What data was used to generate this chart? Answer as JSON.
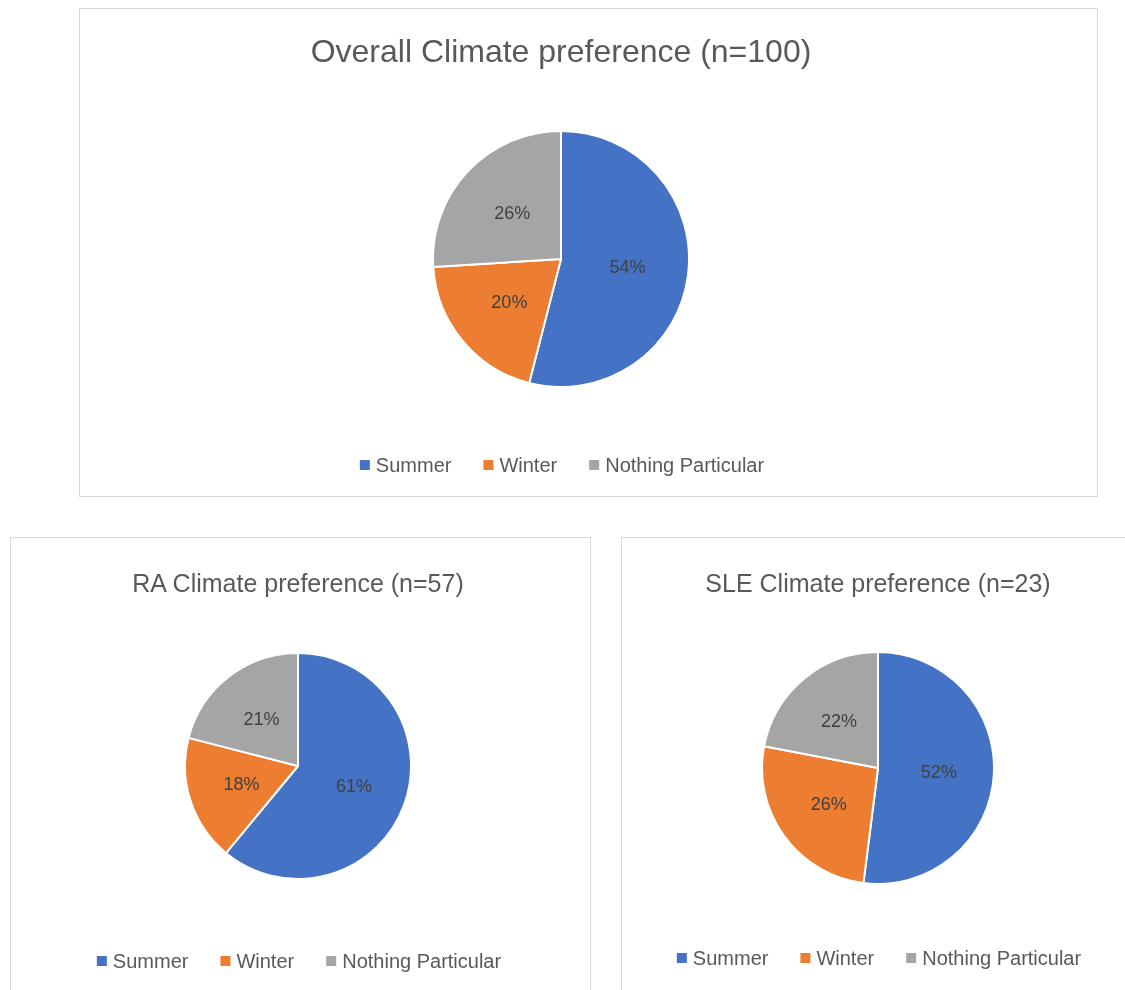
{
  "chart_data": [
    {
      "type": "pie",
      "title": "Overall Climate preference (n=100)",
      "categories": [
        "Summer",
        "Winter",
        "Nothing Particular"
      ],
      "values": [
        54,
        20,
        26
      ],
      "colors": [
        "#4472c4",
        "#ed7d31",
        "#a5a5a5"
      ],
      "value_labels": [
        "54%",
        "20%",
        "26%"
      ],
      "legend": "bottom"
    },
    {
      "type": "pie",
      "title": "RA Climate preference (n=57)",
      "categories": [
        "Summer",
        "Winter",
        "Nothing Particular"
      ],
      "values": [
        61,
        18,
        21
      ],
      "colors": [
        "#4472c4",
        "#ed7d31",
        "#a5a5a5"
      ],
      "value_labels": [
        "61%",
        "18%",
        "21%"
      ],
      "legend": "bottom"
    },
    {
      "type": "pie",
      "title": "SLE Climate preference (n=23)",
      "categories": [
        "Summer",
        "Winter",
        "Nothing Particular"
      ],
      "values": [
        52,
        26,
        22
      ],
      "colors": [
        "#4472c4",
        "#ed7d31",
        "#a5a5a5"
      ],
      "value_labels": [
        "52%",
        "26%",
        "22%"
      ],
      "legend": "bottom"
    }
  ]
}
